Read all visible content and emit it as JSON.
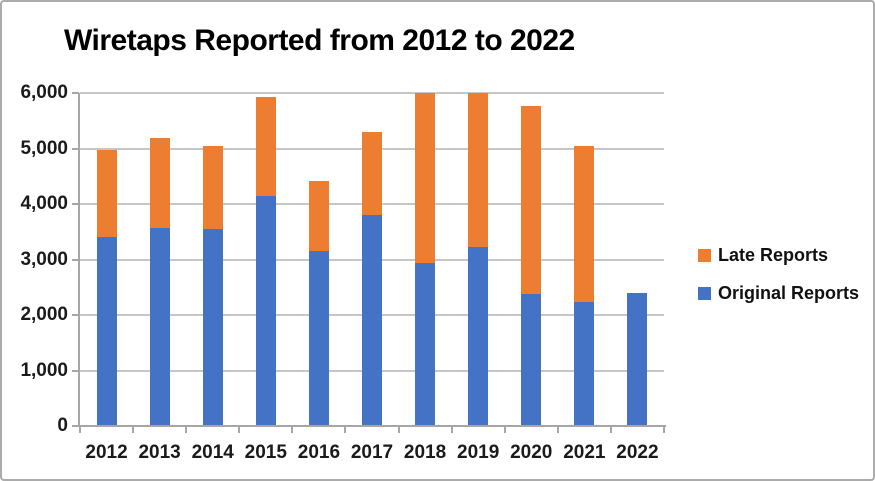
{
  "title": "Wiretaps Reported from 2012 to 2022",
  "colors": {
    "original_reports": "#4472C4",
    "late_reports": "#ED7D31",
    "gridline": "#c6c6c6",
    "axis_line": "#a6a6a6",
    "text": "#1a1a1a",
    "frame_border": "#ababab"
  },
  "legend": {
    "position": "right",
    "items": [
      {
        "label": "Late Reports",
        "color": "#ED7D31"
      },
      {
        "label": "Original Reports",
        "color": "#4472C4"
      }
    ]
  },
  "chart_data": {
    "type": "bar",
    "stacked": true,
    "title": "Wiretaps Reported from 2012 to 2022",
    "xlabel": "",
    "ylabel": "",
    "categories": [
      "2012",
      "2013",
      "2014",
      "2015",
      "2016",
      "2017",
      "2018",
      "2019",
      "2020",
      "2021",
      "2022"
    ],
    "series": [
      {
        "name": "Original Reports",
        "color": "#4472C4",
        "values": [
          3400,
          3570,
          3550,
          4150,
          3160,
          3810,
          2930,
          3220,
          2370,
          2240,
          2400
        ]
      },
      {
        "name": "Late Reports",
        "color": "#ED7D31",
        "values": [
          1580,
          1620,
          1490,
          1770,
          1260,
          1480,
          3070,
          2780,
          3390,
          2800,
          0
        ]
      }
    ],
    "stacked_totals": [
      4980,
      5190,
      5040,
      5920,
      4420,
      5290,
      6000,
      6000,
      5760,
      5040,
      2400
    ],
    "ylim": [
      0,
      6000
    ],
    "ytick_interval": 1000,
    "ytick_labels": [
      "0",
      "1,000",
      "2,000",
      "3,000",
      "4,000",
      "5,000",
      "6,000"
    ],
    "grid": true,
    "legend_position": "right"
  }
}
